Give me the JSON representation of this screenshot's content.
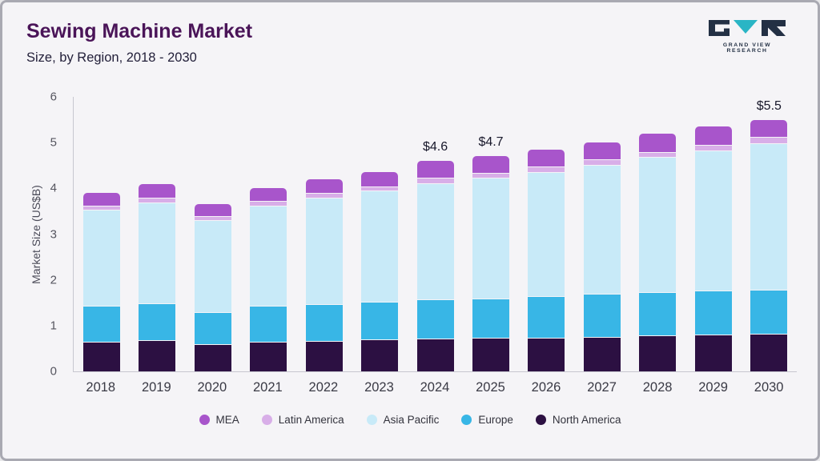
{
  "header": {
    "title": "Sewing Machine Market",
    "subtitle": "Size, by Region, 2018 - 2030",
    "logo_text": "GRAND VIEW RESEARCH"
  },
  "chart_data": {
    "type": "bar",
    "stacked": true,
    "title": "Sewing Machine Market Size, by Region, 2018 - 2030",
    "ylabel": "Market Size (US$B)",
    "ylim": [
      0,
      6
    ],
    "yticks": [
      0,
      1,
      2,
      3,
      4,
      5,
      6
    ],
    "grid": false,
    "legend_position": "bottom",
    "categories": [
      "2018",
      "2019",
      "2020",
      "2021",
      "2022",
      "2023",
      "2024",
      "2025",
      "2026",
      "2027",
      "2028",
      "2029",
      "2030"
    ],
    "series": [
      {
        "name": "North America",
        "color": "#2c1042",
        "values": [
          0.65,
          0.68,
          0.6,
          0.65,
          0.67,
          0.7,
          0.72,
          0.73,
          0.74,
          0.76,
          0.78,
          0.8,
          0.82
        ]
      },
      {
        "name": "Europe",
        "color": "#38b6e6",
        "values": [
          0.78,
          0.8,
          0.7,
          0.78,
          0.8,
          0.83,
          0.85,
          0.87,
          0.9,
          0.93,
          0.95,
          0.96,
          0.97
        ]
      },
      {
        "name": "Asia Pacific",
        "color": "#c8eaf8",
        "values": [
          2.1,
          2.22,
          2.0,
          2.2,
          2.33,
          2.42,
          2.55,
          2.63,
          2.72,
          2.83,
          2.95,
          3.06,
          3.2
        ]
      },
      {
        "name": "Latin America",
        "color": "#d8aee8",
        "values": [
          0.1,
          0.1,
          0.09,
          0.1,
          0.1,
          0.1,
          0.11,
          0.11,
          0.12,
          0.12,
          0.12,
          0.13,
          0.13
        ]
      },
      {
        "name": "MEA",
        "color": "#a855cb",
        "values": [
          0.27,
          0.3,
          0.26,
          0.27,
          0.3,
          0.3,
          0.37,
          0.36,
          0.37,
          0.36,
          0.4,
          0.4,
          0.38
        ]
      }
    ],
    "totals": [
      3.9,
      4.1,
      3.65,
      4.0,
      4.2,
      4.35,
      4.6,
      4.7,
      4.85,
      5.0,
      5.2,
      5.35,
      5.5
    ],
    "annotations": {
      "2024": "$4.6",
      "2025": "$4.7",
      "2030": "$5.5"
    },
    "legend": [
      {
        "label": "MEA",
        "color": "#a855cb"
      },
      {
        "label": "Latin America",
        "color": "#d8aee8"
      },
      {
        "label": "Asia Pacific",
        "color": "#c8eaf8"
      },
      {
        "label": "Europe",
        "color": "#38b6e6"
      },
      {
        "label": "North America",
        "color": "#2c1042"
      }
    ]
  }
}
